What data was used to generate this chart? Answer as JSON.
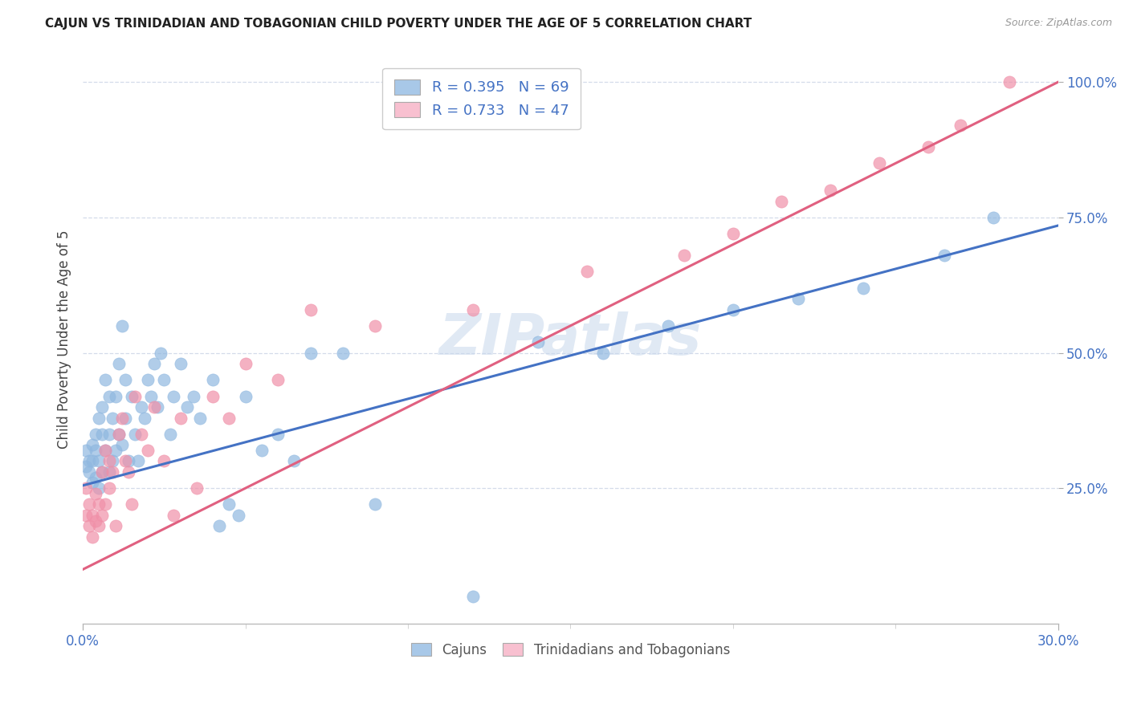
{
  "title": "CAJUN VS TRINIDADIAN AND TOBAGONIAN CHILD POVERTY UNDER THE AGE OF 5 CORRELATION CHART",
  "source": "Source: ZipAtlas.com",
  "ylabel": "Child Poverty Under the Age of 5",
  "legend_entries": [
    {
      "label": "Cajuns",
      "color": "#a8c8e8",
      "border": "#7ab0d8",
      "R": "0.395",
      "N": "69"
    },
    {
      "label": "Trinidadians and Tobagonians",
      "color": "#f8c0d0",
      "border": "#e890a8",
      "R": "0.733",
      "N": "47"
    }
  ],
  "cajun_dot_color": "#90b8e0",
  "trinidadian_dot_color": "#f090a8",
  "cajun_line_color": "#4472c4",
  "trinidadian_line_color": "#e06080",
  "axis_label_color": "#4472c4",
  "background_color": "#ffffff",
  "grid_color": "#d0d8e8",
  "watermark_text": "ZIPatlas",
  "watermark_color": "#c8d8ec",
  "xlim": [
    0.0,
    0.3
  ],
  "ylim": [
    0.0,
    1.05
  ],
  "cajun_x": [
    0.001,
    0.001,
    0.002,
    0.002,
    0.003,
    0.003,
    0.003,
    0.004,
    0.004,
    0.004,
    0.005,
    0.005,
    0.005,
    0.006,
    0.006,
    0.006,
    0.007,
    0.007,
    0.008,
    0.008,
    0.008,
    0.009,
    0.009,
    0.01,
    0.01,
    0.011,
    0.011,
    0.012,
    0.012,
    0.013,
    0.013,
    0.014,
    0.015,
    0.016,
    0.017,
    0.018,
    0.019,
    0.02,
    0.021,
    0.022,
    0.023,
    0.024,
    0.025,
    0.027,
    0.028,
    0.03,
    0.032,
    0.034,
    0.036,
    0.04,
    0.042,
    0.045,
    0.048,
    0.05,
    0.055,
    0.06,
    0.065,
    0.07,
    0.08,
    0.09,
    0.12,
    0.14,
    0.16,
    0.18,
    0.2,
    0.22,
    0.24,
    0.265,
    0.28
  ],
  "cajun_y": [
    0.29,
    0.32,
    0.28,
    0.3,
    0.26,
    0.3,
    0.33,
    0.27,
    0.32,
    0.35,
    0.25,
    0.3,
    0.38,
    0.28,
    0.35,
    0.4,
    0.32,
    0.45,
    0.28,
    0.35,
    0.42,
    0.3,
    0.38,
    0.32,
    0.42,
    0.35,
    0.48,
    0.33,
    0.55,
    0.38,
    0.45,
    0.3,
    0.42,
    0.35,
    0.3,
    0.4,
    0.38,
    0.45,
    0.42,
    0.48,
    0.4,
    0.5,
    0.45,
    0.35,
    0.42,
    0.48,
    0.4,
    0.42,
    0.38,
    0.45,
    0.18,
    0.22,
    0.2,
    0.42,
    0.32,
    0.35,
    0.3,
    0.5,
    0.5,
    0.22,
    0.05,
    0.52,
    0.5,
    0.55,
    0.58,
    0.6,
    0.62,
    0.68,
    0.75
  ],
  "trinidadian_x": [
    0.001,
    0.001,
    0.002,
    0.002,
    0.003,
    0.003,
    0.004,
    0.004,
    0.005,
    0.005,
    0.006,
    0.006,
    0.007,
    0.007,
    0.008,
    0.008,
    0.009,
    0.01,
    0.011,
    0.012,
    0.013,
    0.014,
    0.015,
    0.016,
    0.018,
    0.02,
    0.022,
    0.025,
    0.028,
    0.03,
    0.035,
    0.04,
    0.045,
    0.05,
    0.06,
    0.07,
    0.09,
    0.12,
    0.155,
    0.185,
    0.2,
    0.215,
    0.23,
    0.245,
    0.26,
    0.27,
    0.285
  ],
  "trinidadian_y": [
    0.2,
    0.25,
    0.18,
    0.22,
    0.16,
    0.2,
    0.19,
    0.24,
    0.18,
    0.22,
    0.2,
    0.28,
    0.22,
    0.32,
    0.25,
    0.3,
    0.28,
    0.18,
    0.35,
    0.38,
    0.3,
    0.28,
    0.22,
    0.42,
    0.35,
    0.32,
    0.4,
    0.3,
    0.2,
    0.38,
    0.25,
    0.42,
    0.38,
    0.48,
    0.45,
    0.58,
    0.55,
    0.58,
    0.65,
    0.68,
    0.72,
    0.78,
    0.8,
    0.85,
    0.88,
    0.92,
    1.0
  ],
  "cajun_line_x0": 0.0,
  "cajun_line_x1": 0.3,
  "cajun_line_y0": 0.255,
  "cajun_line_y1": 0.735,
  "trini_line_x0": 0.0,
  "trini_line_x1": 0.3,
  "trini_line_y0": 0.1,
  "trini_line_y1": 1.0
}
